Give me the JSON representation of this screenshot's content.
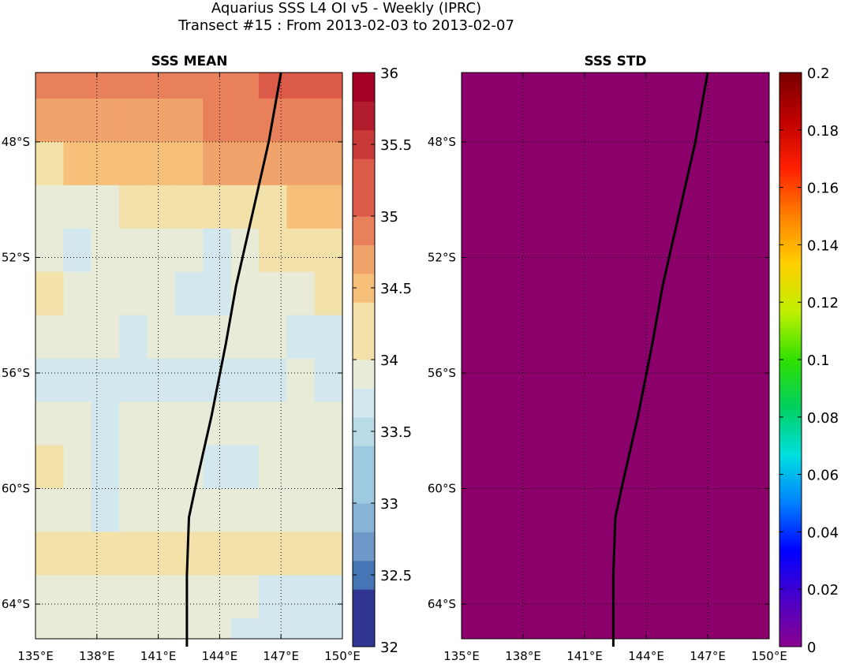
{
  "figure": {
    "title_line1": "Aquarius SSS L4 OI v5 - Weekly (IPRC)",
    "title_line2": "Transect #15 : From 2013-02-03 to 2013-02-07"
  },
  "chart_data": [
    {
      "type": "heatmap",
      "title": "SSS MEAN",
      "xlim": [
        135,
        150
      ],
      "ylim": [
        -65.2,
        -45.6
      ],
      "x_ticks": [
        135,
        138,
        141,
        144,
        147,
        150
      ],
      "x_tick_labels": [
        "135°E",
        "138°E",
        "141°E",
        "144°E",
        "147°E",
        "150°E"
      ],
      "y_ticks": [
        -48,
        -52,
        -56,
        -60,
        -64
      ],
      "y_tick_labels": [
        "48°S",
        "52°S",
        "56°S",
        "60°S",
        "64°S"
      ],
      "grid": true,
      "colorbar": {
        "range": [
          32,
          36
        ],
        "levels": 20,
        "ticks": [
          32,
          32.5,
          33,
          33.5,
          34,
          34.5,
          35,
          35.5,
          36
        ],
        "tick_labels": [
          "32",
          "32.5",
          "33",
          "33.5",
          "34",
          "34.5",
          "35",
          "35.5",
          "36"
        ],
        "colormap": [
          "#313695",
          "#4575b4",
          "#6f97c7",
          "#87b4d6",
          "#9ecae1",
          "#b9dbe6",
          "#d3e8ee",
          "#e8ebd8",
          "#f2e1a8",
          "#f7c07a",
          "#f0a36b",
          "#e8805b",
          "#db5b48",
          "#c93938",
          "#b01c2e",
          "#a50026"
        ]
      },
      "latitude_bands": [
        {
          "lat_range": [
            -46.5,
            -45.6
          ],
          "values": [
            34.8,
            34.8,
            34.8,
            34.8,
            34.8,
            34.9,
            34.9,
            34.9,
            35.0,
            35.0,
            35.0
          ]
        },
        {
          "lat_range": [
            -48.0,
            -46.5
          ],
          "values": [
            34.6,
            34.6,
            34.7,
            34.7,
            34.7,
            34.7,
            34.8,
            34.8,
            34.9,
            34.9,
            34.9
          ]
        },
        {
          "lat_range": [
            -49.5,
            -48.0
          ],
          "values": [
            34.2,
            34.3,
            34.3,
            34.4,
            34.3,
            34.3,
            34.5,
            34.6,
            34.6,
            34.6,
            34.6
          ]
        },
        {
          "lat_range": [
            -51.0,
            -49.5
          ],
          "values": [
            33.9,
            33.9,
            33.9,
            34.0,
            34.0,
            34.1,
            34.1,
            34.1,
            34.2,
            34.4,
            34.4
          ]
        },
        {
          "lat_range": [
            -52.5,
            -51.0
          ],
          "values": [
            33.8,
            33.6,
            33.8,
            33.9,
            33.8,
            33.8,
            33.7,
            33.9,
            34.0,
            34.1,
            34.1
          ]
        },
        {
          "lat_range": [
            -54.0,
            -52.5
          ],
          "values": [
            34.0,
            33.9,
            33.9,
            33.9,
            33.8,
            33.7,
            33.7,
            33.8,
            33.9,
            33.9,
            34.0
          ]
        },
        {
          "lat_range": [
            -55.5,
            -54.0
          ],
          "values": [
            33.9,
            33.9,
            33.9,
            33.7,
            33.9,
            33.9,
            33.9,
            33.9,
            33.8,
            33.7,
            33.7
          ]
        },
        {
          "lat_range": [
            -57.0,
            -55.5
          ],
          "values": [
            33.7,
            33.7,
            33.7,
            33.6,
            33.7,
            33.7,
            33.7,
            33.6,
            33.7,
            33.8,
            33.7
          ]
        },
        {
          "lat_range": [
            -58.5,
            -57.0
          ],
          "values": [
            33.9,
            33.9,
            33.7,
            33.8,
            33.9,
            33.8,
            33.9,
            33.9,
            33.9,
            33.8,
            33.8
          ]
        },
        {
          "lat_range": [
            -60.0,
            -58.5
          ],
          "values": [
            34.0,
            33.9,
            33.7,
            33.8,
            33.9,
            33.8,
            33.7,
            33.6,
            33.8,
            33.9,
            33.9
          ]
        },
        {
          "lat_range": [
            -61.5,
            -60.0
          ],
          "values": [
            33.9,
            33.9,
            33.7,
            33.8,
            33.9,
            33.9,
            33.9,
            33.9,
            33.9,
            33.9,
            33.9
          ]
        },
        {
          "lat_range": [
            -63.0,
            -61.5
          ],
          "values": [
            34.0,
            34.0,
            34.1,
            34.1,
            34.1,
            34.1,
            34.0,
            34.0,
            34.1,
            34.1,
            34.0
          ]
        },
        {
          "lat_range": [
            -64.5,
            -63.0
          ],
          "values": [
            33.9,
            33.9,
            33.9,
            33.9,
            33.9,
            33.9,
            33.9,
            33.8,
            33.7,
            33.7,
            33.7
          ]
        },
        {
          "lat_range": [
            -65.2,
            -64.5
          ],
          "values": [
            33.9,
            33.9,
            33.9,
            33.9,
            33.9,
            33.9,
            33.9,
            33.7,
            33.7,
            33.7,
            33.7
          ]
        }
      ],
      "transect": {
        "lon": [
          147.0,
          146.4,
          145.6,
          144.8,
          144.3,
          143.6,
          142.8,
          142.5,
          142.4,
          142.4,
          142.4
        ],
        "lat": [
          -45.6,
          -48.0,
          -50.5,
          -53.0,
          -55.0,
          -57.5,
          -60.0,
          -61.0,
          -63.0,
          -64.5,
          -65.5
        ]
      }
    },
    {
      "type": "heatmap",
      "title": "SSS STD",
      "xlim": [
        135,
        150
      ],
      "ylim": [
        -65.2,
        -45.6
      ],
      "x_ticks": [
        135,
        138,
        141,
        144,
        147,
        150
      ],
      "x_tick_labels": [
        "135°E",
        "138°E",
        "141°E",
        "144°E",
        "147°E",
        "150°E"
      ],
      "y_ticks": [
        -48,
        -52,
        -56,
        -60,
        -64
      ],
      "y_tick_labels": [
        "48°S",
        "52°S",
        "56°S",
        "60°S",
        "64°S"
      ],
      "grid": true,
      "field_value": 0,
      "fill_color": "#8b006b",
      "colorbar": {
        "range": [
          0,
          0.2
        ],
        "ticks": [
          0,
          0.02,
          0.04,
          0.06,
          0.08,
          0.1,
          0.12,
          0.14,
          0.16,
          0.18,
          0.2
        ],
        "tick_labels": [
          "0",
          "0.02",
          "0.04",
          "0.06",
          "0.08",
          "0.1",
          "0.12",
          "0.14",
          "0.16",
          "0.18",
          "0.2"
        ],
        "colormap": [
          "#8b0090",
          "#4a00c8",
          "#0000ff",
          "#0080ff",
          "#00e0e0",
          "#00d060",
          "#30e000",
          "#c0f000",
          "#ffd000",
          "#ff8000",
          "#ff2000",
          "#c00000",
          "#7a0000"
        ]
      },
      "transect": {
        "lon": [
          147.0,
          146.4,
          145.6,
          144.8,
          144.3,
          143.6,
          142.8,
          142.5,
          142.4,
          142.4,
          142.4
        ],
        "lat": [
          -45.6,
          -48.0,
          -50.5,
          -53.0,
          -55.0,
          -57.5,
          -60.0,
          -61.0,
          -63.0,
          -64.5,
          -65.5
        ]
      }
    }
  ]
}
